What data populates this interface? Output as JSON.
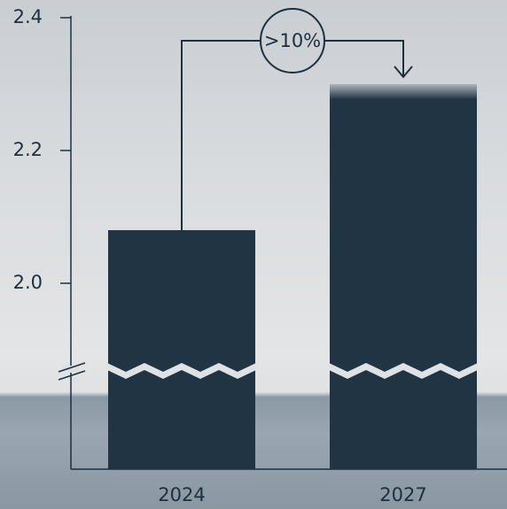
{
  "chart_data": {
    "type": "bar",
    "categories": [
      "2024",
      "2027"
    ],
    "values": [
      2.08,
      2.3
    ],
    "color": "#213444",
    "ylim": [
      2.0,
      2.4
    ],
    "yticks": [
      {
        "value": 2.0,
        "label": "2.0"
      },
      {
        "value": 2.2,
        "label": "2.2"
      },
      {
        "value": 2.4,
        "label": "2.4"
      }
    ],
    "annotation": ">10%",
    "axis_break": true
  }
}
